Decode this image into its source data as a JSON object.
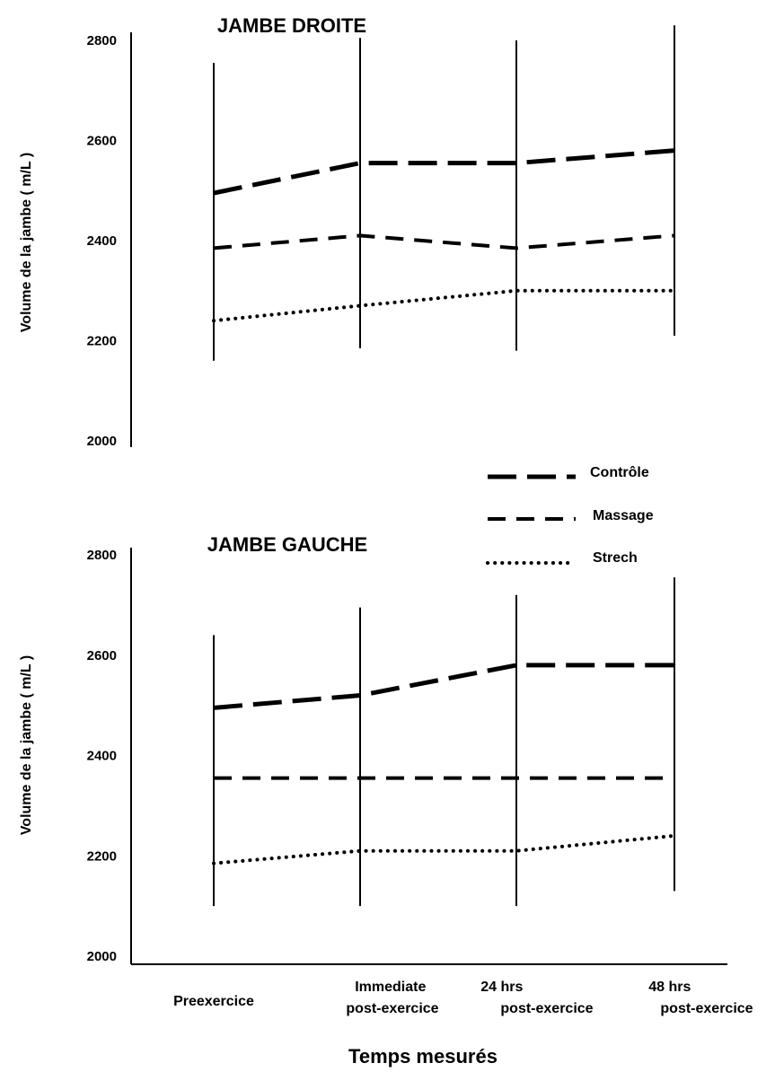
{
  "chart_data": [
    {
      "type": "line",
      "title": "JAMBE DROITE",
      "ylabel": "Volume de la jambe ( m/L )",
      "xlabel": "Temps mesurés",
      "ylim": [
        2000,
        2800
      ],
      "yticks": [
        2000,
        2200,
        2400,
        2600,
        2800
      ],
      "categories": [
        "Preexercice",
        "Immediate post-exercice",
        "24 hrs post-exercice",
        "48 hrs post-exercice"
      ],
      "series": [
        {
          "name": "Contrôle",
          "values": [
            2495,
            2555,
            2555,
            2580
          ],
          "error": [
            [
              2240,
              2755
            ],
            [
              2310,
              2805
            ],
            [
              2295,
              2800
            ],
            [
              2330,
              2830
            ]
          ]
        },
        {
          "name": "Massage",
          "values": [
            2385,
            2410,
            2385,
            2410
          ]
        },
        {
          "name": "Strech",
          "values": [
            2240,
            2270,
            2300,
            2300
          ],
          "error": [
            [
              2160,
              null
            ],
            [
              2185,
              null
            ],
            [
              2180,
              null
            ],
            [
              2210,
              null
            ]
          ]
        }
      ],
      "error_bars": "vertical lines at each time point",
      "grid": false
    },
    {
      "type": "line",
      "title": "JAMBE GAUCHE",
      "ylabel": "Volume de la jambe ( m/L )",
      "xlabel": "Temps mesurés",
      "ylim": [
        2000,
        2800
      ],
      "yticks": [
        2000,
        2200,
        2400,
        2600,
        2800
      ],
      "categories": [
        "Preexercice",
        "Immediate post-exercice",
        "24 hrs post-exercice",
        "48 hrs post-exercice"
      ],
      "series": [
        {
          "name": "Contrôle",
          "values": [
            2495,
            2520,
            2580,
            2580
          ],
          "error": [
            [
              2300,
              2640
            ],
            [
              2300,
              2695
            ],
            [
              2300,
              2720
            ],
            [
              2300,
              2755
            ]
          ]
        },
        {
          "name": "Massage",
          "values": [
            2355,
            2355,
            2355,
            2355
          ]
        },
        {
          "name": "Strech",
          "values": [
            2185,
            2210,
            2210,
            2240
          ],
          "error": [
            [
              2100,
              null
            ],
            [
              2100,
              null
            ],
            [
              2100,
              null
            ],
            [
              2130,
              null
            ]
          ]
        }
      ],
      "error_bars": "vertical lines at each time point",
      "grid": false
    }
  ],
  "legend": {
    "placement": "right, between panels",
    "items": [
      {
        "name": "Contrôle",
        "style": "long-dash"
      },
      {
        "name": "Massage",
        "style": "dash"
      },
      {
        "name": "Strech",
        "style": "dotted"
      }
    ]
  },
  "x_axis": {
    "label": "Temps mesurés",
    "categories": [
      {
        "line1": "Preexercice",
        "line2": ""
      },
      {
        "line1": "Immediate",
        "line2": "post-exercice"
      },
      {
        "line1": "24 hrs",
        "line2": "post-exercice"
      },
      {
        "line1": "48 hrs",
        "line2": "post-exercice"
      }
    ]
  },
  "colors": {
    "ink": "#000000",
    "background": "#ffffff"
  }
}
